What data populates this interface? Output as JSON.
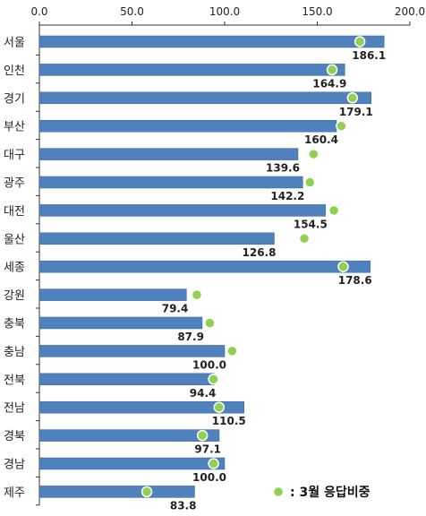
{
  "chart_data": {
    "type": "bar",
    "orientation": "horizontal",
    "categories": [
      "서울",
      "인천",
      "경기",
      "부산",
      "대구",
      "광주",
      "대전",
      "울산",
      "세종",
      "강원",
      "충북",
      "충남",
      "전북",
      "전남",
      "경북",
      "경남",
      "제주"
    ],
    "values": [
      186.1,
      164.9,
      179.1,
      160.4,
      139.6,
      142.2,
      154.5,
      126.8,
      178.6,
      79.4,
      87.9,
      100.0,
      94.4,
      110.5,
      97.1,
      100.0,
      83.8
    ],
    "value_labels": [
      "186.1",
      "164.9",
      "179.1",
      "160.4",
      "139.6",
      "142.2",
      "154.5",
      "126.8",
      "178.6",
      "79.4",
      "87.9",
      "100.0",
      "94.4",
      "110.5",
      "97.1",
      "100.0",
      "83.8"
    ],
    "march_values": [
      173,
      158,
      169,
      163,
      148,
      146,
      159,
      143,
      164,
      85,
      92,
      104,
      94,
      97,
      88,
      94,
      58
    ],
    "xlim": [
      0,
      200
    ],
    "x_ticks": [
      "0.0",
      "50.0",
      "100.0",
      "150.0",
      "200.0"
    ],
    "x_axis_position": "top",
    "grid": false,
    "legend": {
      "position": "bottom-right",
      "label": ": 3월 응답비중"
    },
    "colors": {
      "bar": "#4F81BD",
      "bar_border": "#3A6597",
      "marker": "#92D050",
      "marker_border": "#ffffff",
      "axis": "#333333"
    }
  }
}
